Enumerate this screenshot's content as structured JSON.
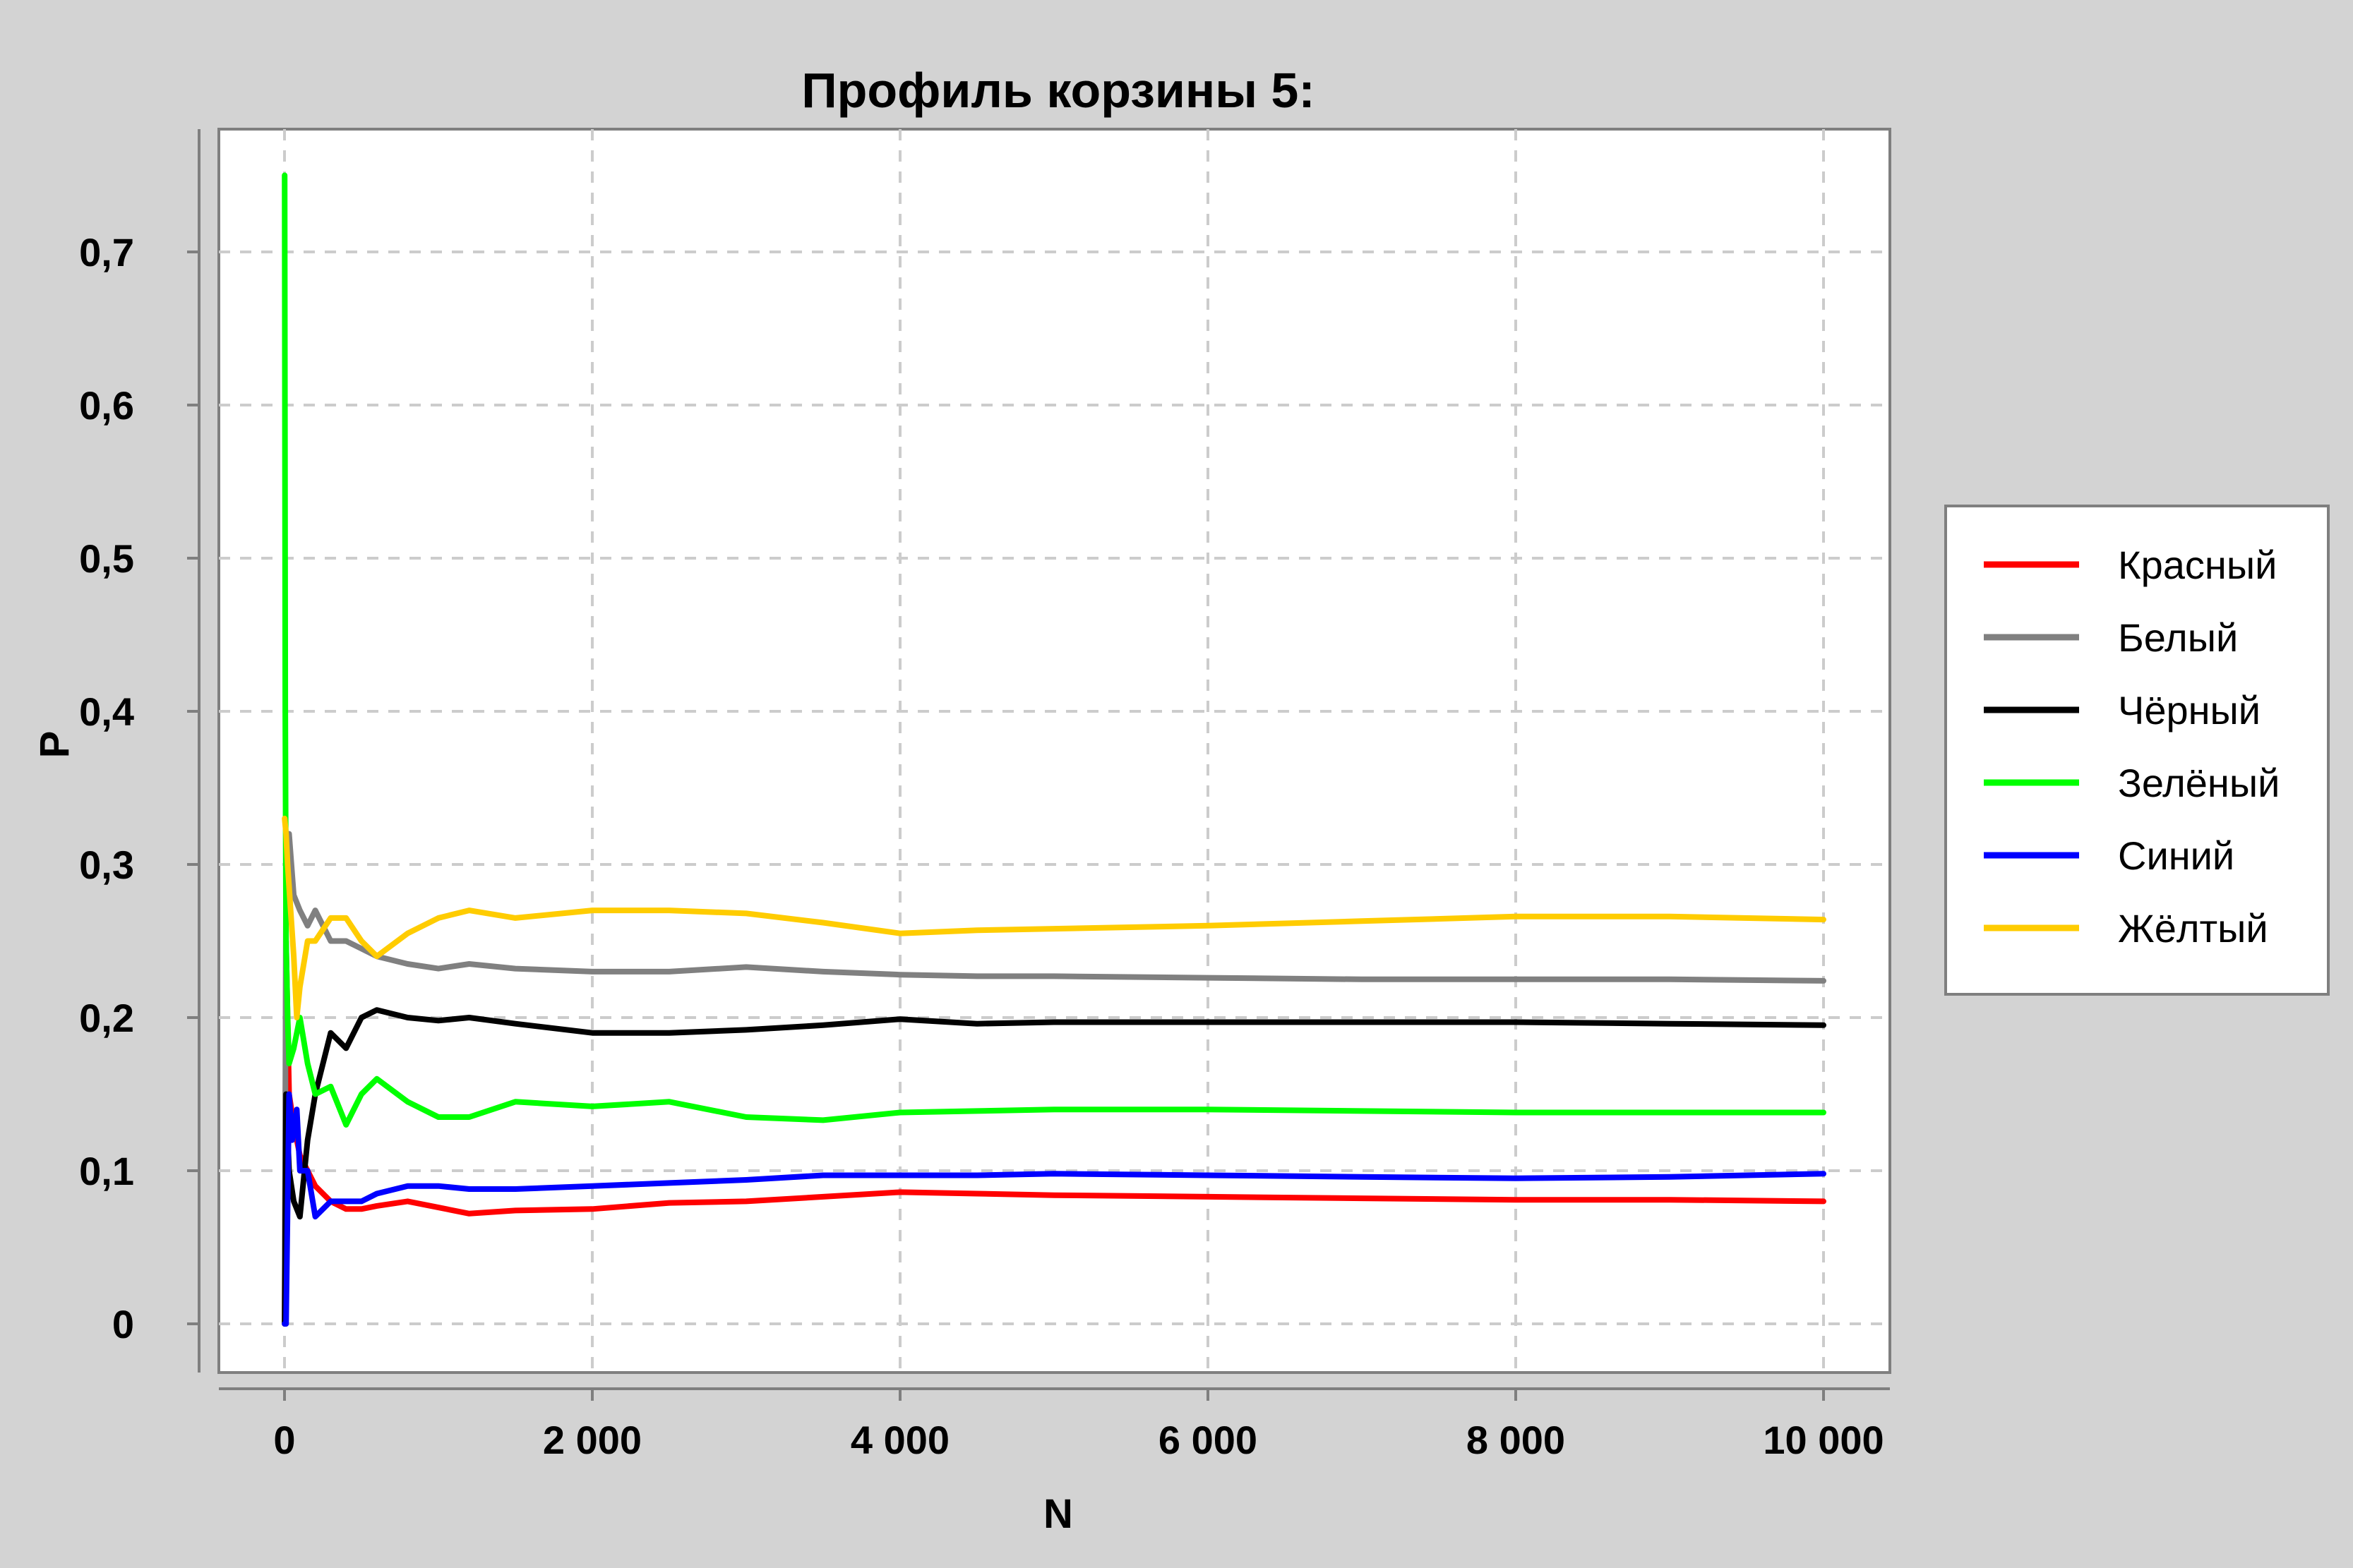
{
  "chart_data": {
    "type": "line",
    "title": "Профиль корзины 5:",
    "xlabel": "N",
    "ylabel": "P",
    "xlim": [
      0,
      10000
    ],
    "ylim": [
      0,
      0.75
    ],
    "x_ticks": [
      0,
      2000,
      4000,
      6000,
      8000,
      10000
    ],
    "x_tick_labels": [
      "0",
      "2 000",
      "4 000",
      "6 000",
      "8 000",
      "10 000"
    ],
    "y_ticks": [
      0,
      0.1,
      0.2,
      0.3,
      0.4,
      0.5,
      0.6,
      0.7
    ],
    "y_tick_labels": [
      "0",
      "0,1",
      "0,2",
      "0,3",
      "0,4",
      "0,5",
      "0,6",
      "0,7"
    ],
    "grid": true,
    "legend_position": "right",
    "series": [
      {
        "name": "Красный",
        "color": "#ff0000",
        "x": [
          1,
          10,
          30,
          60,
          100,
          150,
          200,
          300,
          400,
          500,
          600,
          800,
          1000,
          1200,
          1500,
          2000,
          2500,
          3000,
          3500,
          4000,
          4500,
          5000,
          6000,
          7000,
          8000,
          9000,
          10000
        ],
        "y": [
          0.0,
          0.25,
          0.15,
          0.13,
          0.11,
          0.1,
          0.09,
          0.08,
          0.075,
          0.075,
          0.077,
          0.08,
          0.076,
          0.072,
          0.074,
          0.075,
          0.079,
          0.08,
          0.083,
          0.086,
          0.085,
          0.084,
          0.083,
          0.082,
          0.081,
          0.081,
          0.08
        ]
      },
      {
        "name": "Белый",
        "color": "#808080",
        "x": [
          1,
          10,
          30,
          60,
          100,
          150,
          200,
          300,
          400,
          500,
          600,
          800,
          1000,
          1200,
          1500,
          2000,
          2500,
          3000,
          3500,
          4000,
          4500,
          5000,
          6000,
          7000,
          8000,
          9000,
          10000
        ],
        "y": [
          0.0,
          0.3,
          0.32,
          0.28,
          0.27,
          0.26,
          0.27,
          0.25,
          0.25,
          0.245,
          0.24,
          0.235,
          0.232,
          0.235,
          0.232,
          0.23,
          0.23,
          0.233,
          0.23,
          0.228,
          0.227,
          0.227,
          0.226,
          0.225,
          0.225,
          0.225,
          0.224
        ]
      },
      {
        "name": "Чёрный",
        "color": "#000000",
        "x": [
          1,
          10,
          30,
          60,
          100,
          150,
          200,
          300,
          400,
          500,
          600,
          800,
          1000,
          1200,
          1500,
          2000,
          2500,
          3000,
          3500,
          4000,
          4500,
          5000,
          6000,
          7000,
          8000,
          9000,
          10000
        ],
        "y": [
          0.0,
          0.15,
          0.1,
          0.08,
          0.07,
          0.12,
          0.15,
          0.19,
          0.18,
          0.2,
          0.205,
          0.2,
          0.198,
          0.2,
          0.196,
          0.19,
          0.19,
          0.192,
          0.195,
          0.199,
          0.196,
          0.197,
          0.197,
          0.197,
          0.197,
          0.196,
          0.195
        ]
      },
      {
        "name": "Зелёный",
        "color": "#00ff00",
        "x": [
          1,
          5,
          10,
          20,
          30,
          60,
          100,
          150,
          200,
          300,
          400,
          500,
          600,
          800,
          1000,
          1200,
          1500,
          2000,
          2500,
          3000,
          3500,
          4000,
          4500,
          5000,
          6000,
          7000,
          8000,
          9000,
          10000
        ],
        "y": [
          0.75,
          0.4,
          0.25,
          0.2,
          0.17,
          0.18,
          0.2,
          0.17,
          0.15,
          0.155,
          0.13,
          0.15,
          0.16,
          0.145,
          0.135,
          0.135,
          0.145,
          0.142,
          0.145,
          0.135,
          0.133,
          0.138,
          0.139,
          0.14,
          0.14,
          0.139,
          0.138,
          0.138,
          0.138
        ]
      },
      {
        "name": "Синий",
        "color": "#0000ff",
        "x": [
          1,
          10,
          30,
          50,
          80,
          100,
          150,
          200,
          300,
          400,
          500,
          600,
          800,
          1000,
          1200,
          1500,
          2000,
          2500,
          3000,
          3500,
          4000,
          4500,
          5000,
          6000,
          7000,
          8000,
          9000,
          10000
        ],
        "y": [
          0.0,
          0.0,
          0.15,
          0.12,
          0.14,
          0.1,
          0.1,
          0.07,
          0.08,
          0.08,
          0.08,
          0.085,
          0.09,
          0.09,
          0.088,
          0.088,
          0.09,
          0.092,
          0.094,
          0.097,
          0.097,
          0.097,
          0.098,
          0.097,
          0.096,
          0.095,
          0.096,
          0.098
        ]
      },
      {
        "name": "Жёлтый",
        "color": "#ffcc00",
        "x": [
          1,
          10,
          20,
          40,
          60,
          80,
          100,
          150,
          200,
          300,
          400,
          500,
          600,
          800,
          1000,
          1200,
          1500,
          2000,
          2500,
          3000,
          3500,
          4000,
          4500,
          5000,
          6000,
          7000,
          8000,
          9000,
          10000
        ],
        "y": [
          0.33,
          0.32,
          0.3,
          0.27,
          0.24,
          0.2,
          0.22,
          0.25,
          0.25,
          0.265,
          0.265,
          0.25,
          0.24,
          0.255,
          0.265,
          0.27,
          0.265,
          0.27,
          0.27,
          0.268,
          0.262,
          0.255,
          0.257,
          0.258,
          0.26,
          0.263,
          0.266,
          0.266,
          0.264
        ]
      }
    ]
  }
}
